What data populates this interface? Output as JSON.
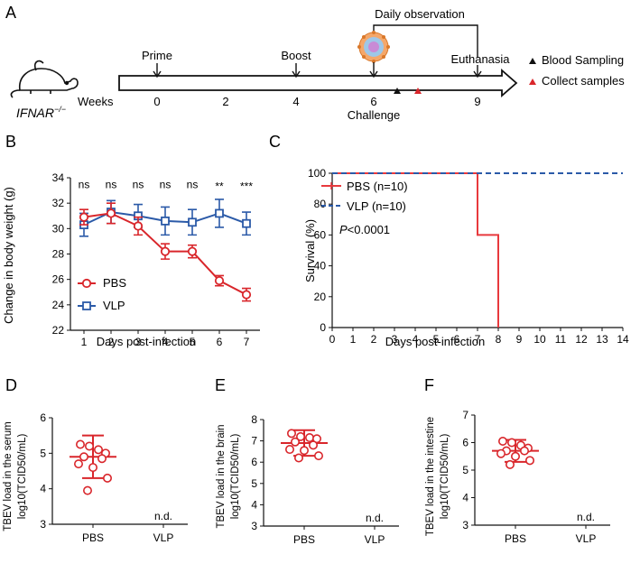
{
  "colors": {
    "pbs": "#d9262b",
    "vlp": "#2b5aa8",
    "axis": "#111111",
    "black": "#111111"
  },
  "panel_labels": {
    "a": "A",
    "b": "B",
    "c": "C",
    "d": "D",
    "e": "E",
    "f": "F"
  },
  "schematic": {
    "mouse_label": "IFNAR",
    "mouse_superscript": "−/−",
    "weeks_label": "Weeks",
    "week_ticks": [
      "0",
      "2",
      "4",
      "6",
      "9"
    ],
    "prime": "Prime",
    "boost": "Boost",
    "daily_observation": "Daily observation",
    "euthanasia": "Euthanasia",
    "challenge": "Challenge",
    "legend_blood": "Blood Sampling",
    "legend_collect": "Collect samples",
    "icon_virus": "virus-icon",
    "icon_mouse": "mouse-icon"
  },
  "chart_data": [
    {
      "type": "line",
      "panel": "B",
      "ylabel": "Change in body weight (g)",
      "xlabel": "Days post-infection",
      "x": [
        1,
        2,
        3,
        4,
        5,
        6,
        7
      ],
      "xlim": [
        0.5,
        7.5
      ],
      "ylim": [
        22,
        34
      ],
      "yticks": [
        22,
        24,
        26,
        28,
        30,
        32,
        34
      ],
      "series": [
        {
          "name": "PBS",
          "marker": "circle",
          "values": [
            30.9,
            31.2,
            30.2,
            28.2,
            28.2,
            25.9,
            24.8
          ],
          "err": [
            0.6,
            0.8,
            0.7,
            0.6,
            0.5,
            0.4,
            0.5
          ]
        },
        {
          "name": "VLP",
          "marker": "square",
          "values": [
            30.3,
            31.3,
            31.0,
            30.6,
            30.5,
            31.2,
            30.4
          ],
          "err": [
            0.9,
            0.9,
            0.9,
            1.1,
            1.0,
            1.1,
            0.9
          ]
        }
      ],
      "significance": [
        "ns",
        "ns",
        "ns",
        "ns",
        "ns",
        "**",
        "***"
      ],
      "legend": [
        "PBS",
        "VLP"
      ]
    },
    {
      "type": "line",
      "panel": "C",
      "ylabel": "Survival (%)",
      "xlabel": "Days post-infection",
      "xticks": [
        0,
        1,
        2,
        3,
        4,
        5,
        6,
        7,
        8,
        9,
        10,
        11,
        12,
        13,
        14
      ],
      "xlim": [
        0,
        14
      ],
      "ylim": [
        0,
        100
      ],
      "yticks": [
        0,
        20,
        40,
        60,
        80,
        100
      ],
      "series": [
        {
          "name": "PBS (n=10)",
          "style": "step",
          "x": [
            0,
            7,
            7,
            8,
            8
          ],
          "values": [
            100,
            100,
            60,
            60,
            0
          ]
        },
        {
          "name": "VLP  (n=10)",
          "style": "dashed",
          "x": [
            0,
            14
          ],
          "values": [
            100,
            100
          ]
        }
      ],
      "annotation_p": "P",
      "annotation_rest": "<0.0001"
    },
    {
      "type": "scatter",
      "panel": "D",
      "ylabel1": "TBEV load in the serum",
      "ylabel2": "log10(TCID50/mL)",
      "categories": [
        "PBS",
        "VLP"
      ],
      "ylim": [
        3,
        6
      ],
      "yticks": [
        3,
        4,
        5,
        6
      ],
      "mean": 4.9,
      "sd": 0.6,
      "points": [
        5.25,
        5.2,
        5.1,
        5.0,
        4.9,
        4.85,
        4.7,
        4.6,
        4.3,
        3.95
      ],
      "nd_label": "n.d."
    },
    {
      "type": "scatter",
      "panel": "E",
      "ylabel1": "TBEV load in the brain",
      "ylabel2": "log10(TCID50/mL)",
      "categories": [
        "PBS",
        "VLP"
      ],
      "ylim": [
        3,
        8
      ],
      "yticks": [
        3,
        4,
        5,
        6,
        7,
        8
      ],
      "mean": 6.9,
      "sd": 0.6,
      "points": [
        7.35,
        7.2,
        7.15,
        7.1,
        6.95,
        6.8,
        6.6,
        6.55,
        6.3,
        6.2
      ],
      "nd_label": "n.d."
    },
    {
      "type": "scatter",
      "panel": "F",
      "ylabel1": "TBEV load in the intestine",
      "ylabel2": "log10(TCID50/mL)",
      "categories": [
        "PBS",
        "VLP"
      ],
      "ylim": [
        3,
        7
      ],
      "yticks": [
        3,
        4,
        5,
        6,
        7
      ],
      "mean": 5.7,
      "sd": 0.4,
      "points": [
        6.05,
        6.0,
        5.9,
        5.8,
        5.7,
        5.7,
        5.6,
        5.5,
        5.35,
        5.2
      ],
      "nd_label": "n.d."
    }
  ]
}
